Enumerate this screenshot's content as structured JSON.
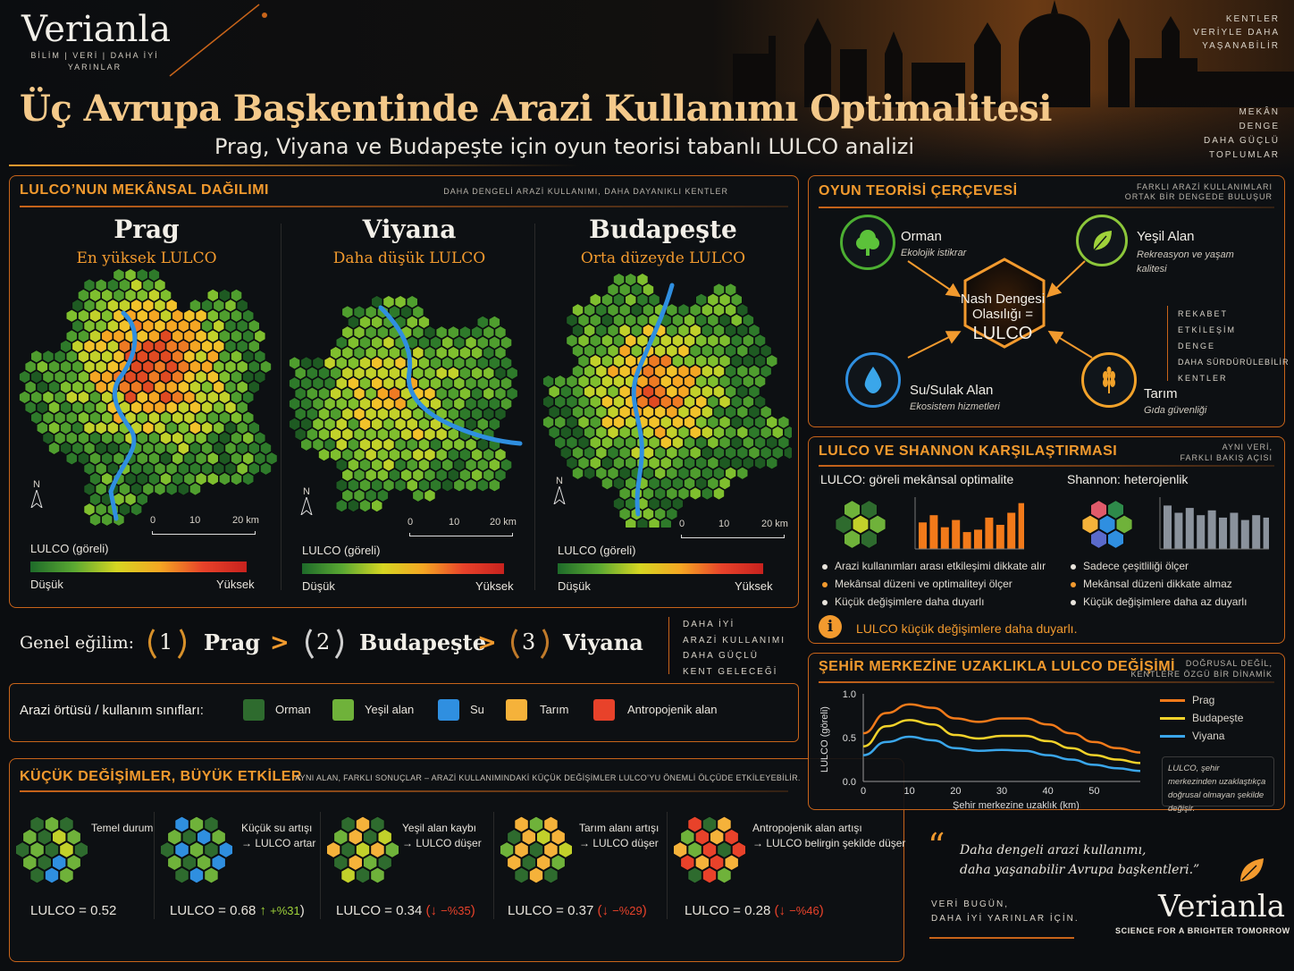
{
  "brand": {
    "logo": "Verianla",
    "tagline": "BİLİM | VERİ | DAHA İYİ YARINLAR"
  },
  "header": {
    "title": "Üç Avrupa Başkentinde Arazi Kullanımı Optimalitesi",
    "subtitle": "Prag, Viyana ve Budapeşte için oyun teorisi tabanlı LULCO analizi",
    "side_top": [
      "KENTLER",
      "VERİYLE DAHA",
      "YAŞANABİLİR"
    ],
    "side_bottom": [
      "MEKÂN",
      "DENGE",
      "DAHA GÜÇLÜ",
      "TOPLUMLAR"
    ]
  },
  "spatial": {
    "title": "LULCO’NUN MEKÂNSAL DAĞILIMI",
    "subtitle": "DAHA DENGELİ ARAZİ KULLANIMI, DAHA DAYANIKLI KENTLER",
    "cities": [
      {
        "name": "Prag",
        "sub": "En yüksek LULCO"
      },
      {
        "name": "Viyana",
        "sub": "Daha düşük LULCO"
      },
      {
        "name": "Budapeşte",
        "sub": "Orta düzeyde LULCO"
      }
    ],
    "north": "N",
    "scale": [
      "0",
      "10",
      "20 km"
    ],
    "legend_title": "LULCO (göreli)",
    "legend_low": "Düşük",
    "legend_high": "Yüksek"
  },
  "trend": {
    "label": "Genel eğilim:",
    "ranks": [
      {
        "num": "1",
        "city": "Prag"
      },
      {
        "num": "2",
        "city": "Budapeşte"
      },
      {
        "num": "3",
        "city": "Viyana"
      }
    ],
    "separator": ">",
    "side": [
      "DAHA İYİ",
      "ARAZİ KULLANIMI",
      "DAHA GÜÇLÜ",
      "KENT GELECEĞİ"
    ]
  },
  "classes": {
    "label": "Arazi örtüsü / kullanım sınıfları:",
    "items": [
      {
        "name": "Orman",
        "color": "#2e6b2e"
      },
      {
        "name": "Yeşil alan",
        "color": "#6fb23a"
      },
      {
        "name": "Su",
        "color": "#2f8fe0"
      },
      {
        "name": "Tarım",
        "color": "#f5b23a"
      },
      {
        "name": "Antropojenik alan",
        "color": "#e8422a"
      }
    ]
  },
  "changes": {
    "title": "KÜÇÜK DEĞİŞİMLER, BÜYÜK ETKİLER",
    "subtitle": "AYNI ALAN, FARKLI SONUÇLAR – ARAZİ KULLANIMINDAKİ KÜÇÜK DEĞİŞİMLER LULCO’YU ÖNEMLİ ÖLÇÜDE ETKİLEYEBİLİR.",
    "cases": [
      {
        "line1": "Temel durum",
        "line2": "",
        "value": "LULCO = 0.52",
        "delta": "",
        "dir": "none"
      },
      {
        "line1": "Küçük su artışı",
        "line2": "→ LULCO artar",
        "value": "LULCO = 0.68",
        "delta": "+%31",
        "dir": "up"
      },
      {
        "line1": "Yeşil alan kaybı",
        "line2": "→ LULCO düşer",
        "value": "LULCO = 0.34",
        "delta": "−%35",
        "dir": "down"
      },
      {
        "line1": "Tarım alanı artışı",
        "line2": "→ LULCO düşer",
        "value": "LULCO = 0.37",
        "delta": "−%29",
        "dir": "down"
      },
      {
        "line1": "Antropojenik alan artışı",
        "line2": "→ LULCO belirgin şekilde düşer",
        "value": "LULCO = 0.28",
        "delta": "−%46",
        "dir": "down"
      }
    ]
  },
  "game": {
    "title": "OYUN TEORİSİ ÇERÇEVESİ",
    "subtitle": [
      "FARKLI ARAZİ KULLANIMLARI",
      "ORTAK BİR DENGEDE BULUŞUR"
    ],
    "center": [
      "Nash Dengesi",
      "Olasılığı =",
      "LULCO"
    ],
    "nodes": [
      {
        "name": "Orman",
        "desc": "Ekolojik istikrar"
      },
      {
        "name": "Yeşil Alan",
        "desc": "Rekreasyon ve yaşam kalitesi"
      },
      {
        "name": "Su/Sulak Alan",
        "desc": "Ekosistem hizmetleri"
      },
      {
        "name": "Tarım",
        "desc": "Gıda güvenliği"
      }
    ],
    "side": [
      "REKABET",
      "ETKİLEŞİM",
      "DENGE",
      "DAHA SÜRDÜRÜLEBİLİR",
      "KENTLER"
    ]
  },
  "compare": {
    "title": "LULCO VE SHANNON KARŞILAŞTIRMASI",
    "subtitle": [
      "AYNI VERİ,",
      "FARKLI BAKIŞ AÇISI"
    ],
    "lulco_head": "LULCO: göreli mekânsal optimalite",
    "shannon_head": "Shannon: heterojenlik",
    "lulco_bullets": [
      "Arazi kullanımları arası etkileşimi dikkate alır",
      "Mekânsal düzeni ve optimaliteyi ölçer",
      "Küçük değişimlere daha duyarlı"
    ],
    "shannon_bullets": [
      "Sadece çeşitliliği ölçer",
      "Mekânsal düzeni dikkate almaz",
      "Küçük değişimlere daha az duyarlı"
    ],
    "lulco_bars": [
      0.55,
      0.7,
      0.45,
      0.6,
      0.35,
      0.4,
      0.65,
      0.5,
      0.75,
      0.95
    ],
    "shannon_bars": [
      0.9,
      0.75,
      0.85,
      0.7,
      0.8,
      0.65,
      0.75,
      0.6,
      0.7,
      0.65
    ],
    "note": "LULCO küçük değişimlere daha duyarlı."
  },
  "distance": {
    "title": "ŞEHİR MERKEZİNE UZAKLIKLA LULCO DEĞİŞİMİ",
    "subtitle": [
      "DOĞRUSAL DEĞİL,",
      "KENTLERE ÖZGÜ BİR DİNAMİK"
    ],
    "note": "LULCO, şehir merkezinden uzaklaştıkça doğrusal olmayan şekilde değişir.",
    "chart_data": {
      "type": "line",
      "xlabel": "Şehir merkezine uzaklık (km)",
      "ylabel": "LULCO (göreli)",
      "xlim": [
        0,
        60
      ],
      "ylim": [
        0,
        1
      ],
      "xticks": [
        "0",
        "10",
        "20",
        "30",
        "40",
        "50"
      ],
      "yticks": [
        "0.0",
        "0.5",
        "1.0"
      ],
      "x": [
        0,
        5,
        10,
        15,
        20,
        25,
        30,
        35,
        40,
        45,
        50,
        55,
        60
      ],
      "series": [
        {
          "name": "Prag",
          "color": "#f27a1a",
          "values": [
            0.55,
            0.78,
            0.88,
            0.84,
            0.72,
            0.68,
            0.72,
            0.72,
            0.65,
            0.55,
            0.45,
            0.38,
            0.33
          ]
        },
        {
          "name": "Budapeşte",
          "color": "#f2d22a",
          "values": [
            0.4,
            0.63,
            0.7,
            0.65,
            0.53,
            0.49,
            0.52,
            0.52,
            0.46,
            0.38,
            0.3,
            0.25,
            0.21
          ]
        },
        {
          "name": "Viyana",
          "color": "#3aa6ea",
          "values": [
            0.3,
            0.45,
            0.51,
            0.47,
            0.38,
            0.35,
            0.36,
            0.35,
            0.3,
            0.25,
            0.19,
            0.15,
            0.12
          ]
        }
      ]
    }
  },
  "quote": {
    "text": [
      "Daha dengeli arazi kullanımı,",
      "daha yaşanabilir Avrupa başkentleri.”"
    ],
    "line1": "VERİ BUGÜN,",
    "line2": "DAHA İYİ YARINLAR İÇİN.",
    "logo": "Verianla",
    "logo_tag": "SCIENCE FOR A BRIGHTER TOMORROW"
  }
}
